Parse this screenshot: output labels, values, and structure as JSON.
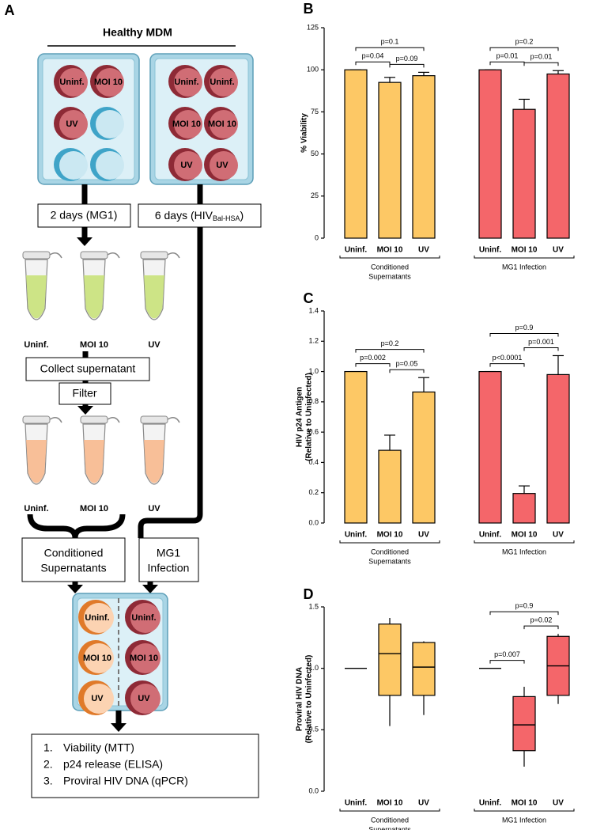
{
  "diagram": {
    "panel": "A",
    "title": "Healthy MDM",
    "plate_1_wells": [
      "Uninf.",
      "MOI 10",
      "UV"
    ],
    "plate_2_wells": [
      "Uninf.",
      "Uninf.",
      "MOI 10",
      "MOI 10",
      "UV",
      "UV"
    ],
    "step_mg1": "2 days (MG1)",
    "step_hiv": {
      "text": "6 days (HIV",
      "subscript": "Bal-HSA",
      "suffix": ")"
    },
    "tubes_1": [
      "Uninf.",
      "MOI 10",
      "UV"
    ],
    "collect": "Collect supernatant",
    "filter": "Filter",
    "tubes_2": [
      "Uninf.",
      "MOI 10",
      "UV"
    ],
    "conditioned": [
      "Conditioned",
      "Supernatants"
    ],
    "infection": [
      "MG1",
      "Infection"
    ],
    "final_plate_wells": [
      "Uninf.",
      "Uninf.",
      "MOI 10",
      "MOI 10",
      "UV",
      "UV"
    ],
    "readouts": [
      {
        "number": "1.",
        "text": "Viability (MTT)"
      },
      {
        "number": "2.",
        "text": "p24 release (ELISA)"
      },
      {
        "number": "3.",
        "text": "Proviral HIV DNA (qPCR)"
      }
    ]
  },
  "chart_data": [
    {
      "panel": "B",
      "type": "bar",
      "ylabel": [
        "% Viability"
      ],
      "ylim": [
        0,
        125
      ],
      "yticks": [
        0,
        25,
        50,
        75,
        100,
        125
      ],
      "groups": [
        {
          "label": [
            "Conditioned",
            "Supernatants"
          ],
          "color": "#fdc865",
          "categories": [
            "Uninf.",
            "MOI 10",
            "UV"
          ],
          "values": [
            100,
            92.5,
            96.5
          ],
          "errors": [
            0,
            3,
            2
          ],
          "annotations": [
            {
              "label": "p=0.04",
              "from": 0,
              "to": 1
            },
            {
              "label": "p=0.09",
              "from": 1,
              "to": 2
            },
            {
              "label": "p=0.1",
              "from": 0,
              "to": 2
            }
          ]
        },
        {
          "label": [
            "MG1 Infection"
          ],
          "color": "#f4666a",
          "categories": [
            "Uninf.",
            "MOI 10",
            "UV"
          ],
          "values": [
            100,
            76.5,
            97.5
          ],
          "errors": [
            0,
            6,
            2
          ],
          "annotations": [
            {
              "label": "p=0.01",
              "from": 0,
              "to": 1
            },
            {
              "label": "p=0.01",
              "from": 1,
              "to": 2
            },
            {
              "label": "p=0.2",
              "from": 0,
              "to": 2
            }
          ]
        }
      ]
    },
    {
      "panel": "C",
      "type": "bar",
      "ylabel": [
        "HIV p24 Antigen",
        "(Relative to Uninfected)"
      ],
      "ylim": [
        0,
        1.4
      ],
      "yticks": [
        {
          "value": 0,
          "label": "0.0"
        },
        0.2,
        0.4,
        0.6,
        0.8,
        {
          "value": 1,
          "label": "1.0"
        },
        1.2,
        1.4
      ],
      "groups": [
        {
          "label": [
            "Conditioned",
            "Supernatants"
          ],
          "color": "#fdc865",
          "categories": [
            "Uninf.",
            "MOI 10",
            "UV"
          ],
          "values": [
            1.0,
            0.48,
            0.865
          ],
          "errors": [
            0,
            0.1,
            0.095
          ],
          "annotations": [
            {
              "label": "p=0.002",
              "from": 0,
              "to": 1
            },
            {
              "label": "p=0.05",
              "from": 1,
              "to": 2
            },
            {
              "label": "p=0.2",
              "from": 0,
              "to": 2
            }
          ]
        },
        {
          "label": [
            "MG1 Infection"
          ],
          "color": "#f4666a",
          "categories": [
            "Uninf.",
            "MOI 10",
            "UV"
          ],
          "values": [
            1.0,
            0.195,
            0.98
          ],
          "errors": [
            0,
            0.05,
            0.125
          ],
          "annotations": [
            {
              "label": "p<0.0001",
              "from": 0,
              "to": 1
            },
            {
              "label": "p=0.001",
              "from": 1,
              "to": 2
            },
            {
              "label": "p=0.9",
              "from": 0,
              "to": 2
            }
          ]
        }
      ]
    },
    {
      "panel": "D",
      "type": "box",
      "ylabel": [
        "Proviral HIV DNA",
        "(Relative to Uninfected)"
      ],
      "ylim": [
        0,
        1.5
      ],
      "yticks": [
        {
          "value": 0,
          "label": "0.0"
        },
        0.5,
        {
          "value": 1,
          "label": "1.0"
        },
        1.5
      ],
      "groups": [
        {
          "label": [
            "Conditioned",
            "Supernatants"
          ],
          "color": "#fdc865",
          "categories": [
            "Uninf.",
            "MOI 10",
            "UV"
          ],
          "boxes": [
            {
              "min": 1.0,
              "q1": 1.0,
              "median": 1.0,
              "q3": 1.0,
              "max": 1.0
            },
            {
              "min": 0.53,
              "q1": 0.78,
              "median": 1.12,
              "q3": 1.36,
              "max": 1.41
            },
            {
              "min": 0.62,
              "q1": 0.78,
              "median": 1.01,
              "q3": 1.21,
              "max": 1.22
            }
          ],
          "annotations": []
        },
        {
          "label": [
            "MG1 Infection"
          ],
          "color": "#f4666a",
          "categories": [
            "Uninf.",
            "MOI 10",
            "UV"
          ],
          "boxes": [
            {
              "min": 1.0,
              "q1": 1.0,
              "median": 1.0,
              "q3": 1.0,
              "max": 1.0
            },
            {
              "min": 0.2,
              "q1": 0.33,
              "median": 0.54,
              "q3": 0.77,
              "max": 0.85
            },
            {
              "min": 0.71,
              "q1": 0.78,
              "median": 1.02,
              "q3": 1.26,
              "max": 1.28
            }
          ],
          "annotations": [
            {
              "label": "p=0.007",
              "from": 0,
              "to": 1
            },
            {
              "label": "p=0.02",
              "from": 1,
              "to": 2
            },
            {
              "label": "p=0.9",
              "from": 0,
              "to": 2
            }
          ]
        }
      ]
    }
  ]
}
